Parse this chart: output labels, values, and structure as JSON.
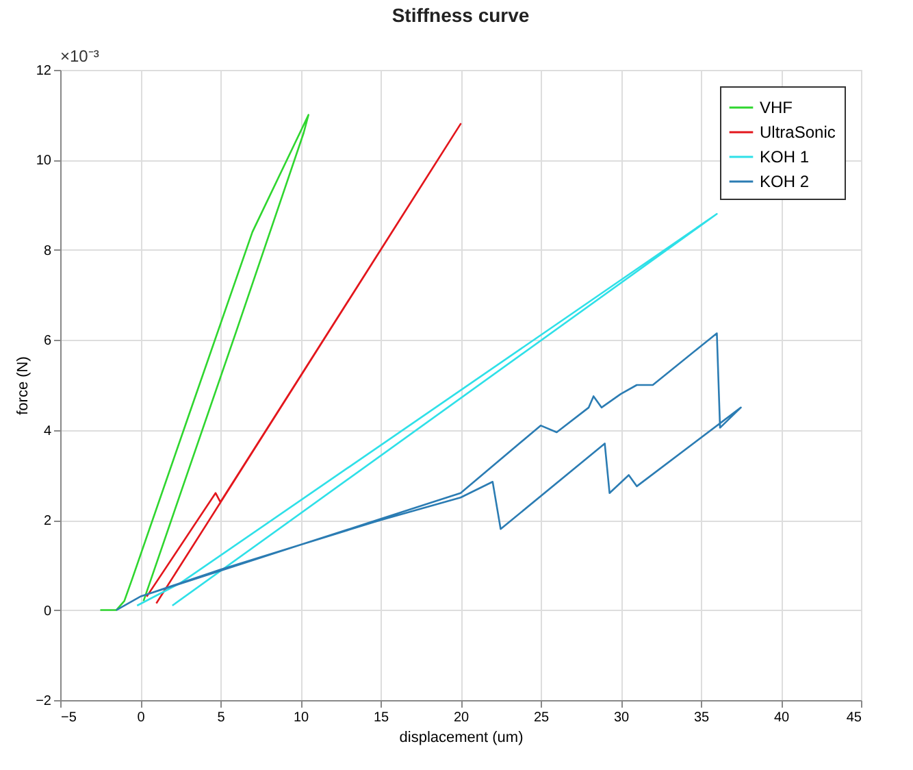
{
  "chart_data": {
    "type": "line",
    "title": "Stiffness curve",
    "xlabel": "displacement (um)",
    "ylabel": "force (N)",
    "annotations": [
      "×10⁻³"
    ],
    "xlim": [
      -5,
      45
    ],
    "xticks": [
      -5,
      0,
      5,
      10,
      15,
      20,
      25,
      30,
      35,
      40,
      45
    ],
    "ylim": [
      -2,
      12
    ],
    "yticks": [
      -2,
      0,
      2,
      4,
      6,
      8,
      10,
      12
    ],
    "grid": true,
    "legend": "top right",
    "marker": "none",
    "line_style": "solid",
    "series": [
      {
        "name": "VHF",
        "color": "#2fd62f",
        "x": [
          -2.5,
          -1.5,
          -1,
          -0.5,
          3,
          7,
          10.5,
          10.2,
          6,
          3,
          0.2
        ],
        "values": [
          0,
          0,
          0.2,
          0.7,
          4.3,
          8.4,
          11.0,
          10.6,
          6.2,
          3.1,
          0.2
        ]
      },
      {
        "name": "UltraSonic",
        "color": "#e3161c",
        "x": [
          0.4,
          4.7,
          5,
          20,
          5.2,
          1
        ],
        "values": [
          0.3,
          2.6,
          2.4,
          10.8,
          2.5,
          0.15
        ]
      },
      {
        "name": "KOH 1",
        "color": "#2fe0e8",
        "x": [
          -0.2,
          2.5,
          36,
          2
        ],
        "values": [
          0.1,
          0.6,
          8.8,
          0.1
        ]
      },
      {
        "name": "KOH 2",
        "color": "#2b7cb3",
        "x": [
          -1.5,
          0,
          5,
          10,
          15,
          20,
          22,
          22.5,
          29,
          29.3,
          30.5,
          31,
          37.5,
          36.2,
          36,
          32,
          31,
          30,
          28.8,
          28.3,
          28,
          26,
          25,
          20,
          10,
          0
        ],
        "values": [
          0,
          0.3,
          0.9,
          1.45,
          2.0,
          2.5,
          2.85,
          1.8,
          3.7,
          2.6,
          3.0,
          2.75,
          4.5,
          4.05,
          6.15,
          5.0,
          5.0,
          4.8,
          4.5,
          4.75,
          4.5,
          3.95,
          4.1,
          2.6,
          1.45,
          0.3
        ]
      }
    ]
  }
}
